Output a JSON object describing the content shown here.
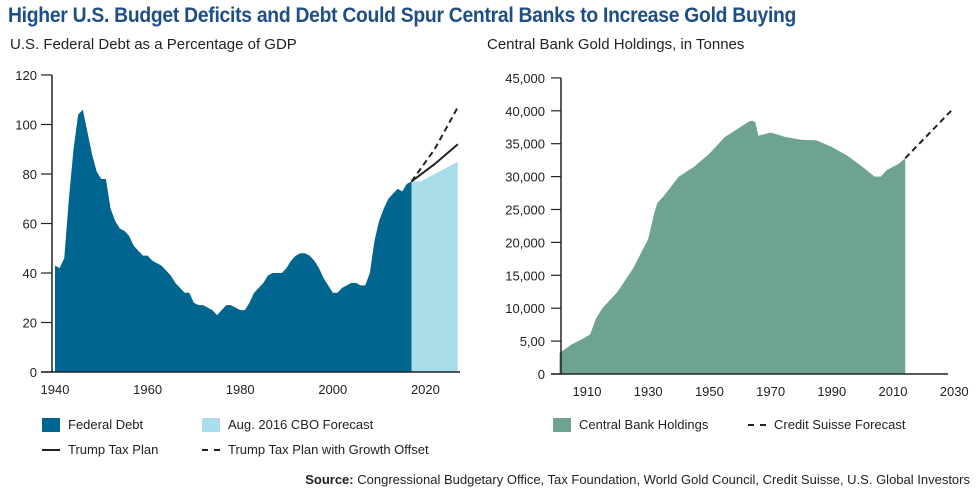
{
  "title": "Higher U.S. Budget Deficits and Debt Could Spur Central Banks to Increase Gold Buying",
  "source_label": "Source:",
  "source_text": "Congressional Budgetary Office, Tax Foundation, World Gold Council, Credit Suisse, U.S. Global Investors",
  "chart_data": [
    {
      "type": "area",
      "title": "U.S. Federal Debt as a Percentage of GDP",
      "xlim": [
        1940,
        2027
      ],
      "ylim": [
        0,
        120
      ],
      "xticks": [
        "1940",
        "1960",
        "1980",
        "2000",
        "2020"
      ],
      "yticks": [
        "0",
        "20",
        "40",
        "60",
        "80",
        "100",
        "120"
      ],
      "colors": {
        "debt": "#00658f",
        "forecast": "#a9dde9",
        "line": "#222222"
      },
      "legend": [
        "Federal Debt",
        "Aug. 2016 CBO Forecast",
        "Trump Tax Plan",
        "Trump Tax Plan with Growth Offset"
      ],
      "series": [
        {
          "name": "Federal Debt",
          "x": [
            1940,
            1941,
            1942,
            1943,
            1944,
            1945,
            1946,
            1947,
            1948,
            1949,
            1950,
            1951,
            1952,
            1953,
            1954,
            1955,
            1956,
            1957,
            1958,
            1959,
            1960,
            1961,
            1962,
            1963,
            1964,
            1965,
            1966,
            1967,
            1968,
            1969,
            1970,
            1971,
            1972,
            1973,
            1974,
            1975,
            1976,
            1977,
            1978,
            1979,
            1980,
            1981,
            1982,
            1983,
            1984,
            1985,
            1986,
            1987,
            1988,
            1989,
            1990,
            1991,
            1992,
            1993,
            1994,
            1995,
            1996,
            1997,
            1998,
            1999,
            2000,
            2001,
            2002,
            2003,
            2004,
            2005,
            2006,
            2007,
            2008,
            2009,
            2010,
            2011,
            2012,
            2013,
            2014,
            2015,
            2016,
            2017
          ],
          "y": [
            43,
            42,
            46,
            70,
            90,
            104,
            106,
            97,
            88,
            81,
            78,
            78,
            66,
            61,
            58,
            57,
            55,
            51,
            49,
            47,
            47,
            45,
            44,
            43,
            41,
            39,
            36,
            34,
            32,
            32,
            28,
            27,
            27,
            26,
            25,
            23,
            25,
            27,
            27,
            26,
            25,
            25,
            28,
            32,
            34,
            36,
            39,
            40,
            40,
            40,
            42,
            45,
            47,
            48,
            48,
            47,
            45,
            42,
            38,
            35,
            32,
            32,
            34,
            35,
            36,
            36,
            35,
            35,
            40,
            53,
            61,
            66,
            70,
            72,
            74,
            73,
            76,
            77
          ]
        },
        {
          "name": "Aug. 2016 CBO Forecast",
          "x": [
            2017,
            2019,
            2021,
            2023,
            2025,
            2027
          ],
          "y": [
            77,
            77,
            79,
            81,
            83,
            85
          ]
        },
        {
          "name": "Trump Tax Plan",
          "x": [
            2017,
            2022,
            2027
          ],
          "y": [
            77,
            84,
            92
          ]
        },
        {
          "name": "Trump Tax Plan with Growth Offset",
          "x": [
            2017,
            2022,
            2027
          ],
          "y": [
            77,
            90,
            107
          ]
        }
      ]
    },
    {
      "type": "area",
      "title": "Central Bank Gold Holdings, in Tonnes",
      "xlim": [
        1901,
        2029
      ],
      "ylim": [
        0,
        45000
      ],
      "xticks": [
        "1910",
        "1930",
        "1950",
        "1970",
        "1990",
        "2010",
        "2030"
      ],
      "yticks": [
        "0",
        "5,00",
        "10,000",
        "15,000",
        "20,000",
        "25,000",
        "30,000",
        "35,000",
        "40,000",
        "45,000"
      ],
      "colors": {
        "holdings": "#6fa391",
        "line": "#222222"
      },
      "legend": [
        "Central Bank Holdings",
        "Credit Suisse Forecast"
      ],
      "series": [
        {
          "name": "Central Bank Holdings",
          "x": [
            1901,
            1905,
            1908,
            1911,
            1913,
            1915,
            1920,
            1925,
            1930,
            1932,
            1933,
            1935,
            1940,
            1945,
            1950,
            1955,
            1960,
            1963,
            1964,
            1965,
            1966,
            1970,
            1975,
            1980,
            1985,
            1990,
            1995,
            2000,
            2004,
            2006,
            2008,
            2012,
            2014
          ],
          "y": [
            3200,
            4500,
            5200,
            6000,
            8500,
            10000,
            12500,
            16000,
            20500,
            24500,
            26000,
            27000,
            30000,
            31500,
            33500,
            36000,
            37500,
            38400,
            38500,
            38300,
            36200,
            36700,
            36000,
            35600,
            35500,
            34500,
            33200,
            31500,
            30000,
            30000,
            31000,
            32000,
            32800
          ]
        },
        {
          "name": "Credit Suisse Forecast",
          "x": [
            2014,
            2029
          ],
          "y": [
            32800,
            40000
          ]
        }
      ]
    }
  ]
}
